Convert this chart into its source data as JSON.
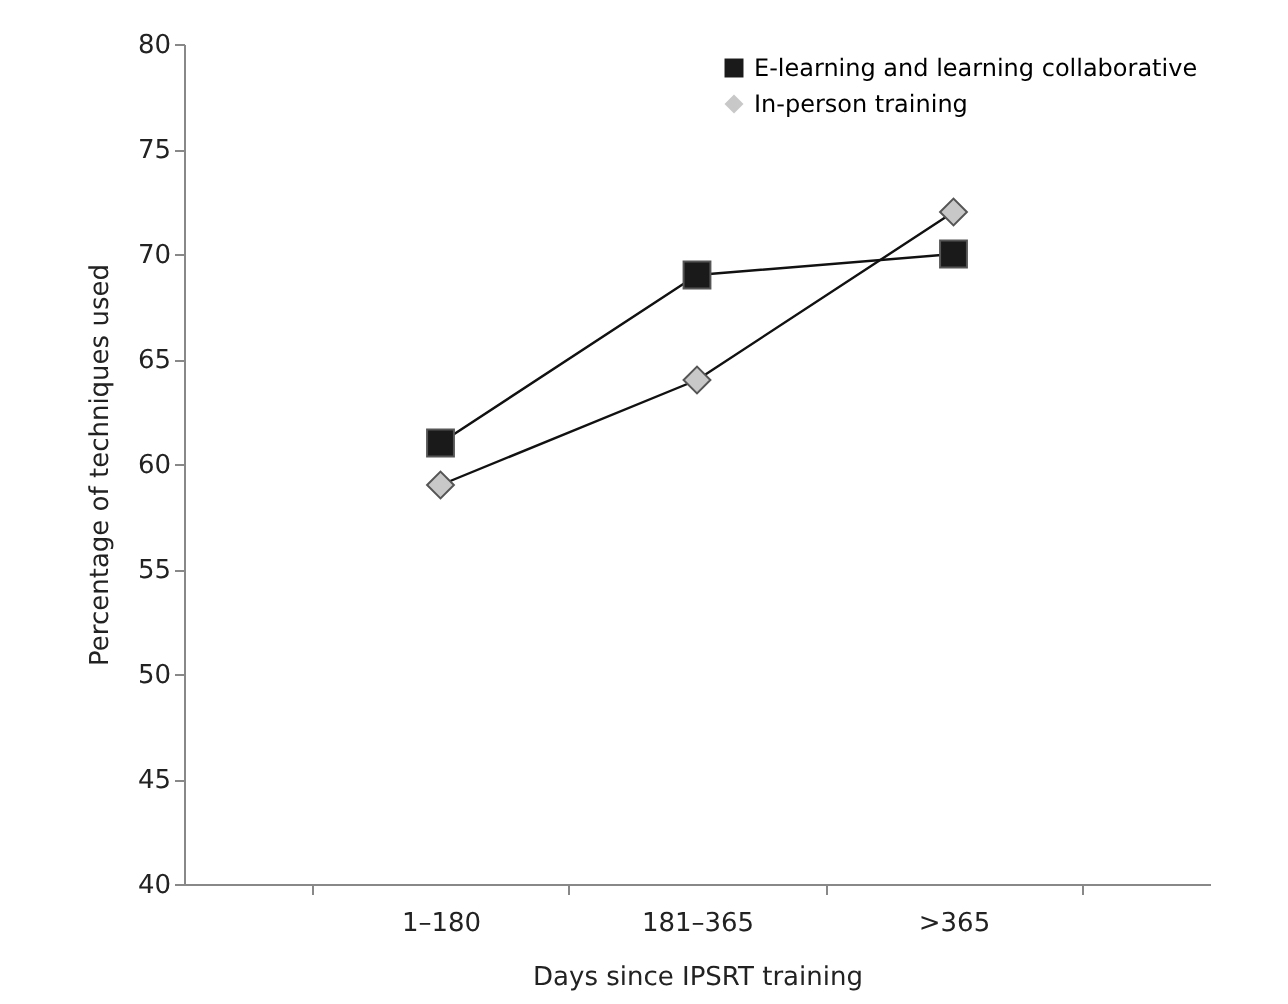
{
  "chart_data": {
    "type": "line",
    "xlabel": "Days since IPSRT training",
    "ylabel": "Percentage of techniques used",
    "categories": [
      "1–180",
      "181–365",
      ">365"
    ],
    "series": [
      {
        "name": "E-learning and learning collaborative",
        "color": "#1a1a1a",
        "marker": "square",
        "values": [
          61,
          69,
          70
        ]
      },
      {
        "name": "In-person training",
        "color": "#c8c8c8",
        "marker": "diamond",
        "values": [
          59,
          64,
          72
        ]
      }
    ],
    "ylim": [
      40,
      80
    ],
    "yticks": [
      40,
      45,
      50,
      55,
      60,
      65,
      70,
      75,
      80
    ],
    "grid": false,
    "legend": "top right",
    "line_style": "solid"
  }
}
